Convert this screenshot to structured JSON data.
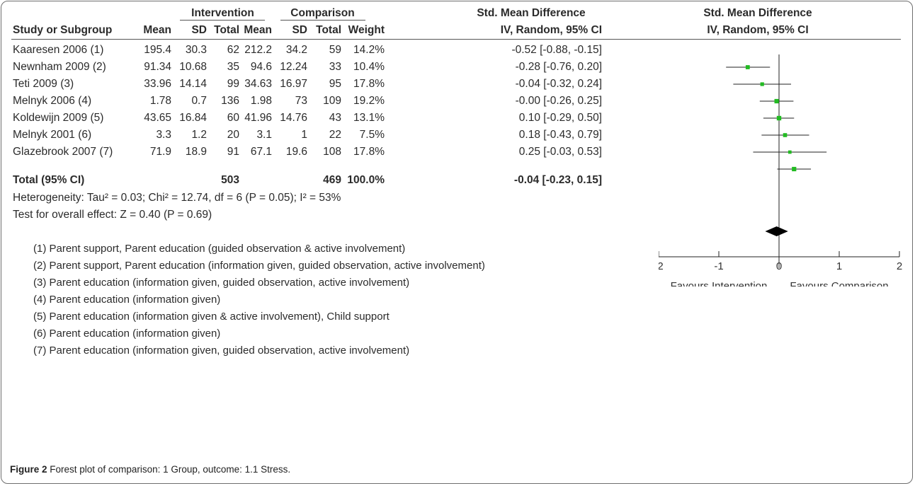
{
  "header": {
    "group1": "Intervention",
    "group2": "Comparison",
    "smd_title": "Std. Mean Difference",
    "columns": {
      "study": "Study or Subgroup",
      "mean": "Mean",
      "sd": "SD",
      "total": "Total",
      "weight": "Weight",
      "ci": "IV, Random, 95% CI"
    },
    "plot_title": "Std. Mean Difference",
    "plot_subtitle": "IV, Random, 95% CI"
  },
  "studies": [
    {
      "name": "Kaaresen 2006 (1)",
      "im": "195.4",
      "isd": "30.3",
      "it": "62",
      "cm": "212.2",
      "csd": "34.2",
      "ct": "59",
      "w": "14.2%",
      "ci": "-0.52 [-0.88, -0.15]"
    },
    {
      "name": "Newnham 2009 (2)",
      "im": "91.34",
      "isd": "10.68",
      "it": "35",
      "cm": "94.6",
      "csd": "12.24",
      "ct": "33",
      "w": "10.4%",
      "ci": "-0.28 [-0.76, 0.20]"
    },
    {
      "name": "Teti 2009 (3)",
      "im": "33.96",
      "isd": "14.14",
      "it": "99",
      "cm": "34.63",
      "csd": "16.97",
      "ct": "95",
      "w": "17.8%",
      "ci": "-0.04 [-0.32, 0.24]"
    },
    {
      "name": "Melnyk 2006 (4)",
      "im": "1.78",
      "isd": "0.7",
      "it": "136",
      "cm": "1.98",
      "csd": "73",
      "ct": "109",
      "w": "19.2%",
      "ci": "-0.00 [-0.26, 0.25]"
    },
    {
      "name": "Koldewijn 2009 (5)",
      "im": "43.65",
      "isd": "16.84",
      "it": "60",
      "cm": "41.96",
      "csd": "14.76",
      "ct": "43",
      "w": "13.1%",
      "ci": "0.10 [-0.29, 0.50]"
    },
    {
      "name": "Melnyk 2001 (6)",
      "im": "3.3",
      "isd": "1.2",
      "it": "20",
      "cm": "3.1",
      "csd": "1",
      "ct": "22",
      "w": "7.5%",
      "ci": "0.18 [-0.43, 0.79]"
    },
    {
      "name": "Glazebrook 2007 (7)",
      "im": "71.9",
      "isd": "18.9",
      "it": "91",
      "cm": "67.1",
      "csd": "19.6",
      "ct": "108",
      "w": "17.8%",
      "ci": "0.25 [-0.03, 0.53]"
    }
  ],
  "total": {
    "label": "Total (95% CI)",
    "it": "503",
    "ct": "469",
    "w": "100.0%",
    "ci": "-0.04 [-0.23, 0.15]"
  },
  "heterogeneity": "Heterogeneity: Tau² = 0.03; Chi² = 12.74, df = 6 (P = 0.05); I² = 53%",
  "overall_effect": "Test for overall effect: Z = 0.40 (P = 0.69)",
  "axis_labels": {
    "favours_left": "Favours Intervention",
    "favours_right": "Favours Comparison"
  },
  "footnotes": [
    "(1) Parent support, Parent education (guided observation & active involvement)",
    "(2) Parent support, Parent education (information given, guided observation, active involvement)",
    "(3) Parent education (information given, guided observation, active involvement)",
    "(4) Parent education (information given)",
    "(5) Parent education (information given & active involvement), Child support",
    "(6) Parent education (information given)",
    "(7) Parent education (information given, guided observation, active involvement)"
  ],
  "caption": {
    "label": "Figure 2",
    "text": "Forest plot of comparison: 1 Group, outcome: 1.1 Stress."
  },
  "colors": {
    "marker": "#22bb22",
    "diamond": "#000000",
    "line": "#222222"
  },
  "chart_data": {
    "type": "forest",
    "x_range": [
      -2,
      2
    ],
    "x_ticks": [
      "-2",
      "-1",
      "0",
      "1",
      "2"
    ],
    "studies": [
      {
        "label": "Kaaresen 2006 (1)",
        "est": -0.52,
        "lo": -0.88,
        "hi": -0.15,
        "weight": 14.2
      },
      {
        "label": "Newnham 2009 (2)",
        "est": -0.28,
        "lo": -0.76,
        "hi": 0.2,
        "weight": 10.4
      },
      {
        "label": "Teti 2009 (3)",
        "est": -0.04,
        "lo": -0.32,
        "hi": 0.24,
        "weight": 17.8
      },
      {
        "label": "Melnyk 2006 (4)",
        "est": -0.0,
        "lo": -0.26,
        "hi": 0.25,
        "weight": 19.2
      },
      {
        "label": "Koldewijn 2009 (5)",
        "est": 0.1,
        "lo": -0.29,
        "hi": 0.5,
        "weight": 13.1
      },
      {
        "label": "Melnyk 2001 (6)",
        "est": 0.18,
        "lo": -0.43,
        "hi": 0.79,
        "weight": 7.5
      },
      {
        "label": "Glazebrook 2007 (7)",
        "est": 0.25,
        "lo": -0.03,
        "hi": 0.53,
        "weight": 17.8
      }
    ],
    "pooled": {
      "est": -0.04,
      "lo": -0.23,
      "hi": 0.15
    }
  }
}
